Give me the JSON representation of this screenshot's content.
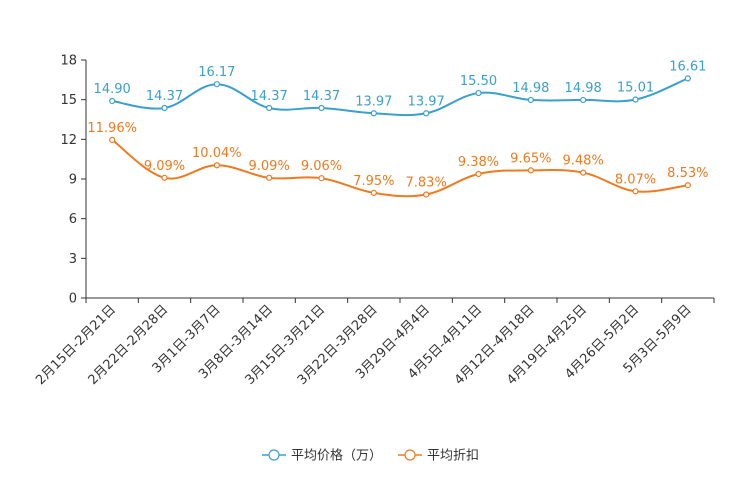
{
  "chart_data": {
    "type": "line",
    "categories": [
      "2月15日-2月21日",
      "2月22日-2月28日",
      "3月1日-3月7日",
      "3月8日-3月14日",
      "3月15日-3月21日",
      "3月22日-3月28日",
      "3月29日-4月4日",
      "4月5日-4月11日",
      "4月12日-4月18日",
      "4月19日-4月25日",
      "4月26日-5月2日",
      "5月3日-5月9日"
    ],
    "series": [
      {
        "name": "平均价格（万）",
        "color": "#3ba0cb",
        "values": [
          14.9,
          14.37,
          16.17,
          14.37,
          14.37,
          13.97,
          13.97,
          15.5,
          14.98,
          14.98,
          15.01,
          16.61
        ],
        "labels": [
          "14.90",
          "14.37",
          "16.17",
          "14.37",
          "14.37",
          "13.97",
          "13.97",
          "15.50",
          "14.98",
          "14.98",
          "15.01",
          "16.61"
        ]
      },
      {
        "name": "平均折扣",
        "color": "#f07a20",
        "values": [
          11.96,
          9.09,
          10.04,
          9.09,
          9.06,
          7.95,
          7.83,
          9.38,
          9.65,
          9.48,
          8.07,
          8.53
        ],
        "labels": [
          "11.96%",
          "9.09%",
          "10.04%",
          "9.09%",
          "9.06%",
          "7.95%",
          "7.83%",
          "9.38%",
          "9.65%",
          "9.48%",
          "8.07%",
          "8.53%"
        ]
      }
    ],
    "yticks": [
      "0",
      "3",
      "6",
      "9",
      "12",
      "15",
      "18"
    ],
    "ylim": [
      0,
      18
    ],
    "legend": [
      "平均价格（万）",
      "平均折扣"
    ],
    "legend_position": "bottom-center"
  }
}
